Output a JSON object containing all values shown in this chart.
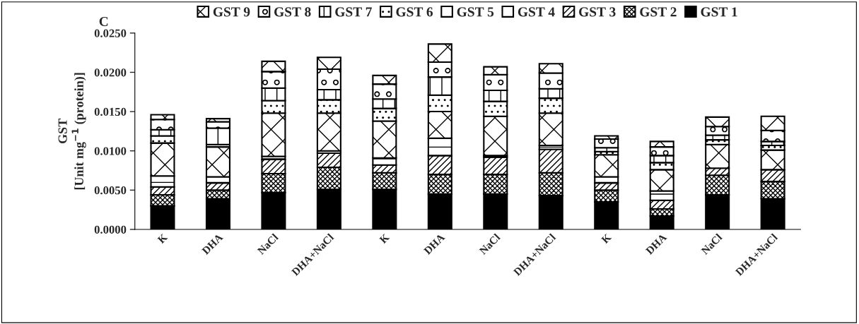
{
  "chart_data": {
    "type": "bar",
    "stacked": true,
    "ylabel": "GST\n[Unit mg$^{−1}$ (protein)]",
    "annotations": [
      "C"
    ],
    "categories": [
      "K",
      "DHA",
      "NaCl",
      "DHA+NaCl",
      "K",
      "DHA",
      "NaCl",
      "DHA+NaCl",
      "K",
      "DHA",
      "NaCl",
      "DHA+NaCl"
    ],
    "series": [
      {
        "name": "GST 1",
        "color": "#000000",
        "values": [
          0.003,
          0.0039,
          0.0047,
          0.0051,
          0.0051,
          0.0045,
          0.0045,
          0.0043,
          0.0035,
          0.0017,
          0.0044,
          0.0039
        ]
      },
      {
        "name": "GST 2",
        "color": "#ffffff",
        "values": [
          0.0014,
          0.0011,
          0.0024,
          0.0028,
          0.0021,
          0.0025,
          0.0025,
          0.0029,
          0.0015,
          0.0009,
          0.0025,
          0.0022
        ]
      },
      {
        "name": "GST 3",
        "color": "#ffffff",
        "values": [
          0.001,
          0.0009,
          0.0018,
          0.0018,
          0.001,
          0.0024,
          0.0022,
          0.003,
          0.0009,
          0.0011,
          0.0009,
          0.0015
        ]
      },
      {
        "name": "GST 4",
        "color": "#ffffff",
        "values": [
          0.0014,
          0.0008,
          0.0004,
          0.0003,
          0.0009,
          0.0022,
          0.0002,
          0.0005,
          0.0008,
          0.0012,
          null,
          null
        ]
      },
      {
        "name": "GST 5",
        "color": "#ffffff",
        "values": [
          0.0042,
          0.0038,
          0.0055,
          0.0048,
          0.0047,
          0.0034,
          0.005,
          0.0041,
          0.0028,
          0.0027,
          0.003,
          0.0025
        ]
      },
      {
        "name": "GST 6",
        "color": "#ffffff",
        "values": [
          0.0009,
          0.0003,
          0.0016,
          0.0017,
          0.0016,
          0.0021,
          0.0019,
          0.0019,
          0.0004,
          0.0009,
          0.0006,
          0.0006
        ]
      },
      {
        "name": "GST 7",
        "color": "#ffffff",
        "values": [
          0.0008,
          0.0021,
          0.0016,
          0.0013,
          0.0012,
          0.0023,
          0.0014,
          0.0012,
          0.0005,
          0.0009,
          0.0006,
          0.0005
        ]
      },
      {
        "name": "GST 8",
        "color": "#ffffff",
        "values": [
          0.0013,
          0.0008,
          0.0021,
          0.0026,
          0.0019,
          0.0019,
          0.002,
          0.002,
          0.0011,
          0.0011,
          0.0011,
          0.0014
        ]
      },
      {
        "name": "GST 9",
        "color": "#ffffff",
        "values": [
          0.0006,
          0.0004,
          0.0013,
          0.0015,
          0.0011,
          0.0023,
          0.001,
          0.0012,
          0.0004,
          0.0007,
          0.0012,
          0.0018
        ]
      }
    ],
    "ylim": [
      0,
      0.025
    ],
    "yticks": [
      {
        "value": 0,
        "label": "0.0000"
      },
      {
        "value": 0.005,
        "label": "0.0050"
      },
      {
        "value": 0.01,
        "label": "0.0100"
      },
      {
        "value": 0.015,
        "label": "0.0150"
      },
      {
        "value": 0.02,
        "label": "0.0200"
      },
      {
        "value": 0.025,
        "label": "0.0250"
      }
    ],
    "legend": "top",
    "grid": false
  }
}
